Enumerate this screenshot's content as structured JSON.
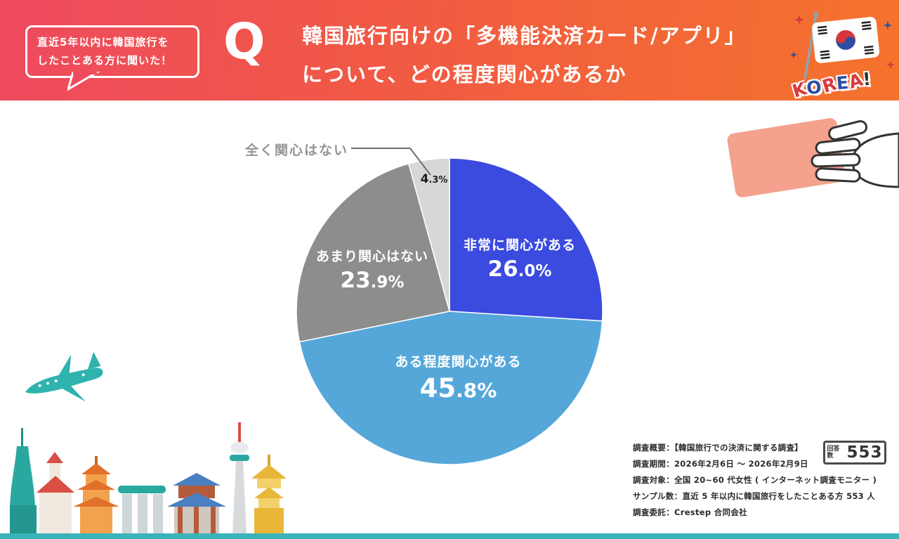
{
  "header": {
    "bubble_line1": "直近5年以内に韓国旅行を",
    "bubble_line2": "したことある方に聞いた！",
    "q_mark": "Q",
    "title_line1": "韓国旅行向けの「多機能決済カード/アプリ」",
    "title_line2": "について、どの程度関心があるか",
    "korea_text": "KOREA!"
  },
  "chart_data": {
    "type": "pie",
    "title": "韓国旅行向けの「多機能決済カード/アプリ」について、どの程度関心があるか",
    "labels": [
      "非常に関心がある",
      "ある程度関心がある",
      "あまり関心はない",
      "全く関心はない"
    ],
    "values": [
      26.0,
      45.8,
      23.9,
      4.3
    ],
    "unit": "%",
    "colors": [
      "#3b4adf",
      "#55a7da",
      "#8d8d8d",
      "#d7d7d7"
    ],
    "start_angle_deg": 0,
    "direction": "clockwise",
    "legend": "none",
    "label_style": "inside; smallest slice labeled with outside leader line"
  },
  "footer": {
    "survey_lines": [
      "調査概要：【韓国旅行での決済に関する調査】",
      "調査期間：2026年2月6日 ～ 2026年2月9日",
      "調査対象：全国 20~60 代女性 ( インターネット調査モニター )",
      "サンプル数：直近 5 年以内に韓国旅行をしたことある方 553 人",
      "調査委託：Crestep 合同会社"
    ],
    "respondents_label": "回答数",
    "respondents_value": "553"
  }
}
